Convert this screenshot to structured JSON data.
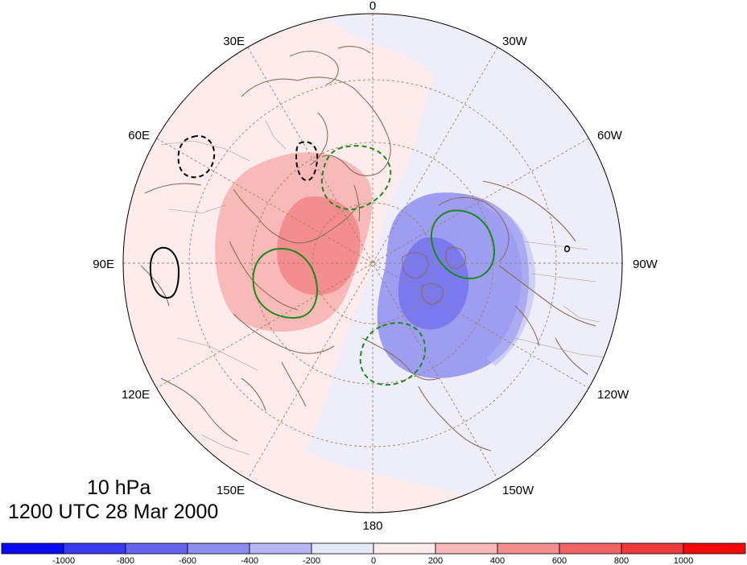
{
  "title": {
    "level": "10 hPa",
    "time": "1200 UTC 28 Mar 2000"
  },
  "projection": "north-polar-stereographic",
  "longitude_labels": [
    "0",
    "30W",
    "60W",
    "90W",
    "120W",
    "150W",
    "180",
    "150E",
    "120E",
    "90E",
    "60E",
    "30E"
  ],
  "colorbar": {
    "tick_labels": [
      "-1000",
      "-800",
      "-600",
      "-400",
      "-200",
      "0",
      "200",
      "400",
      "600",
      "800",
      "1000"
    ],
    "colors": [
      "#0a0af2",
      "#3a3af0",
      "#6464ee",
      "#8d8df0",
      "#b6b6f4",
      "#e8e8fb",
      "#fdeceb",
      "#f8b9b9",
      "#f48e8e",
      "#f06464",
      "#ec3a3a",
      "#f20a0a"
    ]
  },
  "shading": {
    "positive_background": "#fdeceb",
    "negative_background": "#eeeefb",
    "positive_mid": "#f8b9b9",
    "positive_strong": "#f48e8e",
    "negative_mid": "#9d9df2",
    "negative_strong": "#7a7aee"
  },
  "overlay_contours": {
    "positive_color": "#1a8a1a",
    "negative_color": "#1a8a1a",
    "black_color": "#000000"
  },
  "coastline_color": "#8b6e56",
  "graticule_color": "#a08060"
}
